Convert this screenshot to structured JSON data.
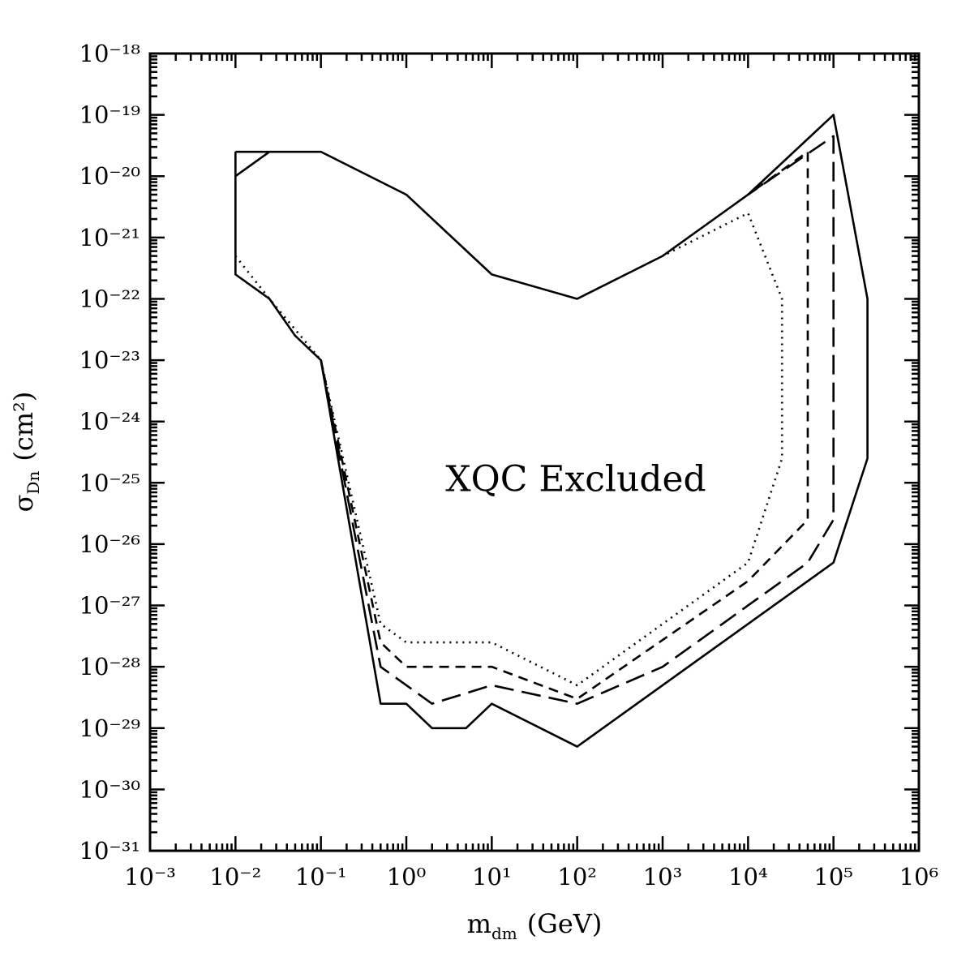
{
  "chart_data": {
    "type": "line",
    "annotation": "XQC Excluded",
    "x_label": {
      "main": "m",
      "sub": "dm",
      "unit": "(GeV)"
    },
    "y_label": {
      "main": "σ",
      "sub": "Dn",
      "unit": "(cm²)"
    },
    "log_x": true,
    "log_y": true,
    "minor_ticks": true,
    "mirror_ticks": true,
    "xlim": [
      0.001,
      1000000
    ],
    "ylim": [
      1e-31,
      1e-18
    ],
    "xticks": [
      {
        "value": 0.001,
        "label": "10⁻³"
      },
      {
        "value": 0.01,
        "label": "10⁻²"
      },
      {
        "value": 0.1,
        "label": "10⁻¹"
      },
      {
        "value": 1,
        "label": "10⁰"
      },
      {
        "value": 10,
        "label": "10¹"
      },
      {
        "value": 100,
        "label": "10²"
      },
      {
        "value": 1000,
        "label": "10³"
      },
      {
        "value": 10000,
        "label": "10⁴"
      },
      {
        "value": 100000,
        "label": "10⁵"
      },
      {
        "value": 1000000,
        "label": "10⁶"
      }
    ],
    "yticks": [
      {
        "value": 1e-31,
        "label": "10⁻³¹"
      },
      {
        "value": 1e-30,
        "label": "10⁻³⁰"
      },
      {
        "value": 1e-29,
        "label": "10⁻²⁹"
      },
      {
        "value": 1e-28,
        "label": "10⁻²⁸"
      },
      {
        "value": 1e-27,
        "label": "10⁻²⁷"
      },
      {
        "value": 1e-26,
        "label": "10⁻²⁶"
      },
      {
        "value": 1e-25,
        "label": "10⁻²⁵"
      },
      {
        "value": 1e-24,
        "label": "10⁻²⁴"
      },
      {
        "value": 1e-23,
        "label": "10⁻²³"
      },
      {
        "value": 1e-22,
        "label": "10⁻²²"
      },
      {
        "value": 1e-21,
        "label": "10⁻²¹"
      },
      {
        "value": 1e-20,
        "label": "10⁻²⁰"
      },
      {
        "value": 1e-19,
        "label": "10⁻¹⁹"
      },
      {
        "value": 1e-18,
        "label": "10⁻¹⁸"
      }
    ],
    "series": [
      {
        "color": "#000000",
        "dash": "solid",
        "x": [
          0.01,
          0.1,
          1,
          10,
          100,
          1000,
          10000,
          100000,
          250000,
          250000,
          100000,
          100,
          10,
          5,
          2,
          1,
          0.5,
          0.1,
          0.05,
          0.025,
          0.01,
          0.01,
          null,
          0.01,
          0.025
        ],
        "values": [
          2.5e-20,
          2.5e-20,
          5e-21,
          2.5e-22,
          1e-22,
          5e-22,
          5e-21,
          1e-19,
          1e-22,
          2.5e-25,
          5e-27,
          5e-30,
          2.5e-29,
          1e-29,
          1e-29,
          2.5e-29,
          2.5e-29,
          1e-23,
          2.5e-23,
          1e-22,
          2.5e-22,
          2.5e-20,
          null,
          1e-20,
          2.5e-20
        ]
      },
      {
        "color": "#000000",
        "dash": "long",
        "x": [
          0.1,
          0.5,
          2,
          10,
          100,
          1000,
          50000,
          100000,
          100000,
          10000
        ],
        "values": [
          1e-23,
          1e-28,
          2.5e-29,
          5e-29,
          2.5e-29,
          1e-28,
          5e-27,
          2.5e-26,
          4.5e-20,
          5e-21
        ]
      },
      {
        "color": "#000000",
        "dash": "short",
        "x": [
          0.1,
          0.5,
          1,
          10,
          100,
          10000,
          50000,
          50000,
          10000
        ],
        "values": [
          1e-23,
          2.5e-28,
          1e-28,
          1e-28,
          3e-29,
          2.5e-27,
          2.5e-26,
          2.5e-20,
          5e-21
        ]
      },
      {
        "color": "#000000",
        "dash": "dot",
        "x": [
          0.01,
          0.025,
          0.1,
          0.5,
          1,
          10,
          100,
          10000,
          25000,
          25000,
          10000,
          1000
        ],
        "values": [
          5e-22,
          1e-22,
          1e-23,
          5e-28,
          2.5e-28,
          2.5e-28,
          5e-29,
          5e-27,
          2.5e-25,
          1e-22,
          2.5e-21,
          5e-22
        ]
      }
    ]
  }
}
